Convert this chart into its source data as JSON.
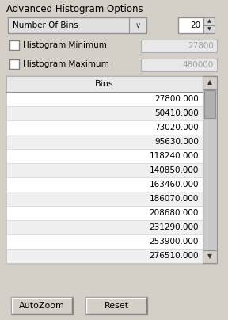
{
  "title": "Advanced Histogram Options",
  "dropdown_label": "Number Of Bins",
  "dropdown_value": "20",
  "min_label": "Histogram Minimum",
  "min_value": "27800",
  "max_label": "Histogram Maximum",
  "max_value": "480000",
  "table_header": "Bins",
  "bin_values": [
    "27800.000",
    "50410.000",
    "73020.000",
    "95630.000",
    "118240.000",
    "140850.000",
    "163460.000",
    "186070.000",
    "208680.000",
    "231290.000",
    "253900.000",
    "276510.000"
  ],
  "btn1": "AutoZoom",
  "btn2": "Reset",
  "panel_bg": "#d4d0c8",
  "widget_bg": "#ffffff",
  "border_color": "#808080",
  "text_color": "#000000",
  "disabled_text_color": "#a0a0a0",
  "row_bg": "#f0f0f0",
  "header_bg": "#e8e8e8",
  "scrollbar_bg": "#c8c8c8",
  "scrollbar_thumb": "#b0b0b0",
  "btn_bg": "#d4d0c8",
  "field_bg": "#e8e8e8",
  "dd_bg": "#e0e0e0"
}
